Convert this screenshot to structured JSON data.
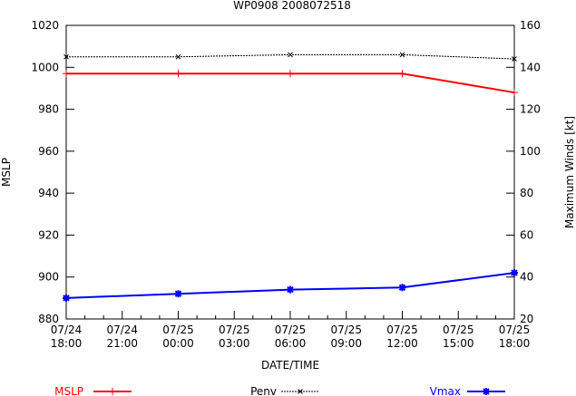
{
  "chart_data": {
    "type": "line",
    "title": "WP0908 2008072518",
    "xlabel": "DATE/TIME",
    "ylabel": "MSLP",
    "y2label": "Maximum Winds [kt]",
    "ylim": [
      880,
      1020
    ],
    "y2lim": [
      20,
      160
    ],
    "yticks": [
      880,
      900,
      920,
      940,
      960,
      980,
      1000,
      1020
    ],
    "y2ticks": [
      20,
      40,
      60,
      80,
      100,
      120,
      140,
      160
    ],
    "xlim_hours": [
      0,
      24
    ],
    "xticks": [
      {
        "h": 0,
        "l1": "07/24",
        "l2": "18:00"
      },
      {
        "h": 3,
        "l1": "07/24",
        "l2": "21:00"
      },
      {
        "h": 6,
        "l1": "07/25",
        "l2": "00:00"
      },
      {
        "h": 9,
        "l1": "07/25",
        "l2": "03:00"
      },
      {
        "h": 12,
        "l1": "07/25",
        "l2": "06:00"
      },
      {
        "h": 15,
        "l1": "07/25",
        "l2": "09:00"
      },
      {
        "h": 18,
        "l1": "07/25",
        "l2": "12:00"
      },
      {
        "h": 21,
        "l1": "07/25",
        "l2": "15:00"
      },
      {
        "h": 24,
        "l1": "07/25",
        "l2": "18:00"
      }
    ],
    "x_hours": [
      0,
      6,
      12,
      18,
      24
    ],
    "series": [
      {
        "name": "MSLP",
        "axis": "left",
        "color": "#ff0000",
        "values": [
          997,
          997,
          997,
          997,
          988
        ]
      },
      {
        "name": "Penv",
        "axis": "left",
        "color": "#000000",
        "values": [
          1005,
          1005,
          1006,
          1006,
          1004
        ]
      },
      {
        "name": "Vmax",
        "axis": "right",
        "color": "#0000ff",
        "values": [
          30,
          32,
          34,
          35,
          42
        ]
      }
    ],
    "grid": false,
    "legend": "bottom"
  }
}
